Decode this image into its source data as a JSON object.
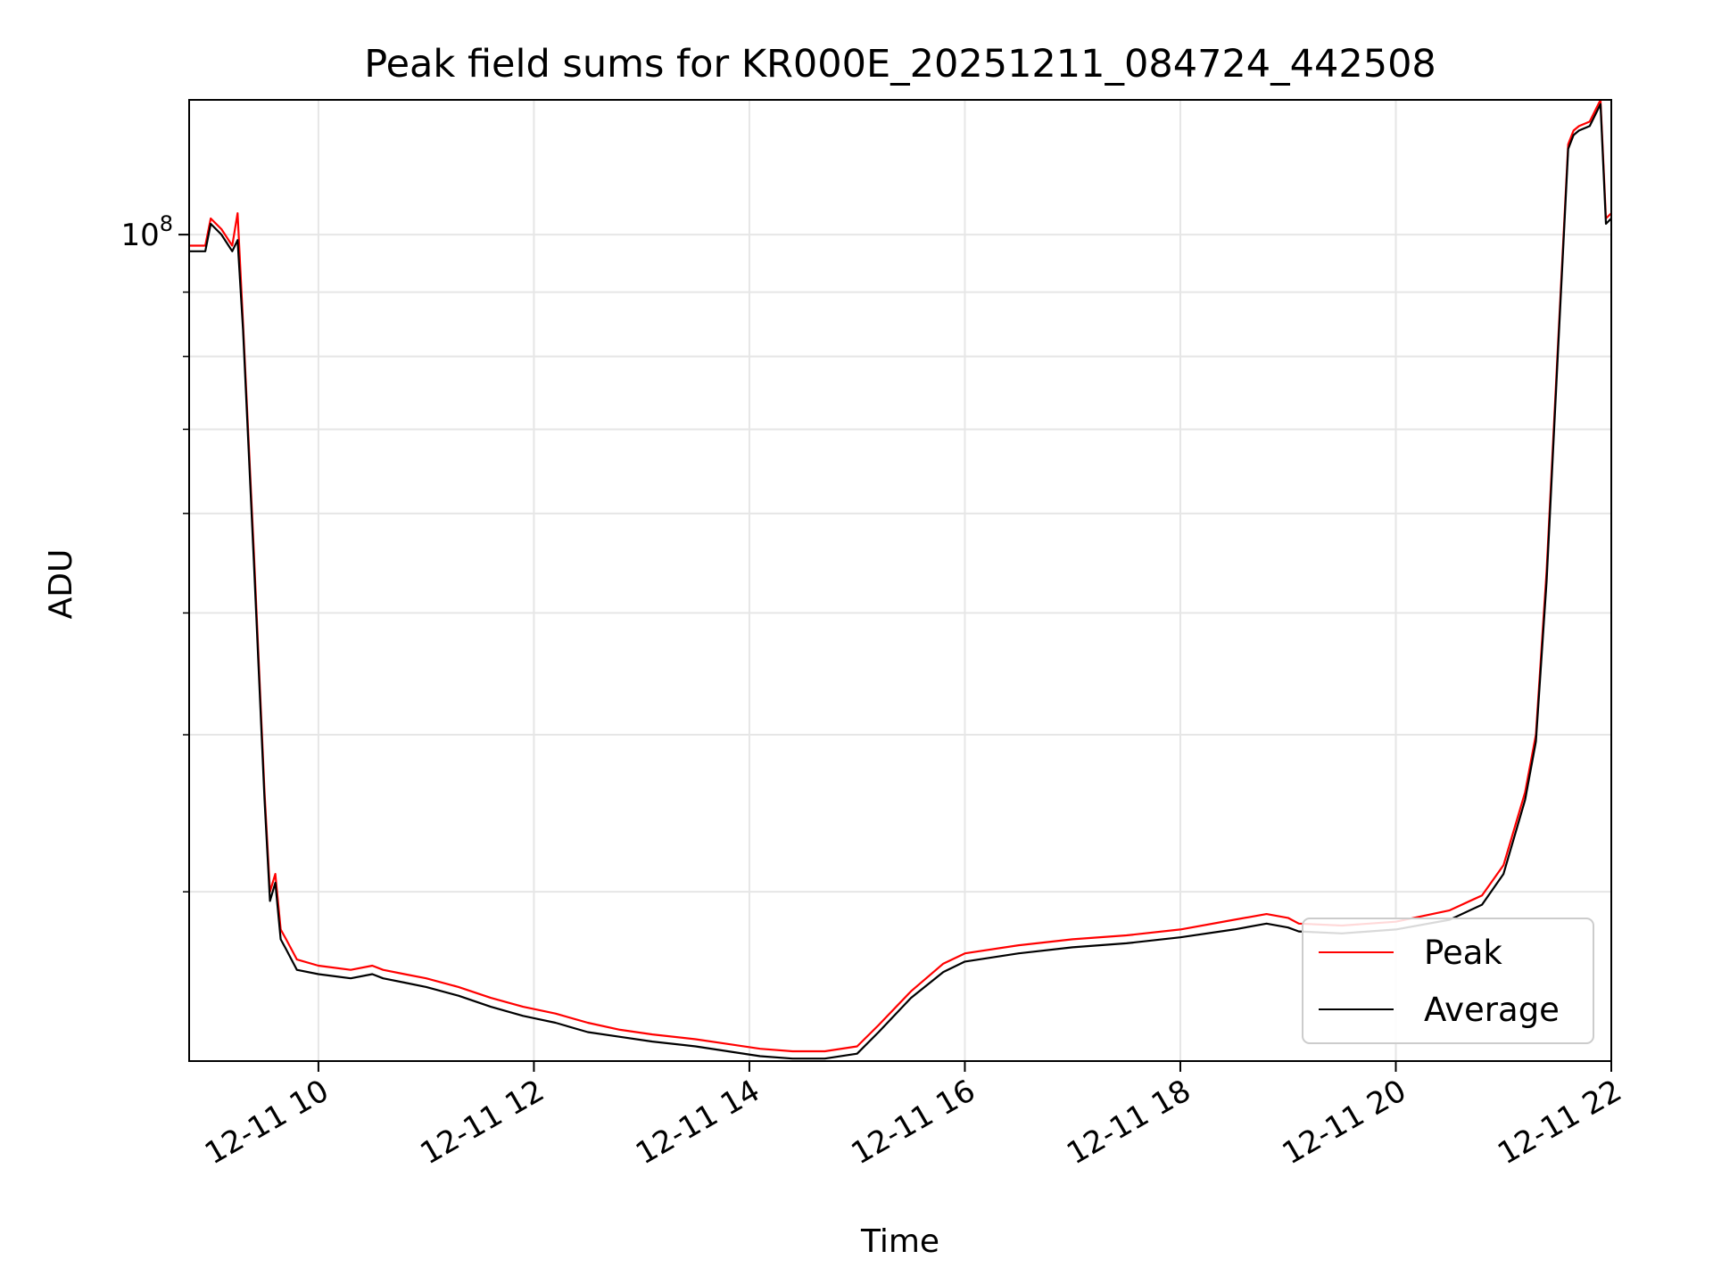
{
  "chart_data": {
    "type": "line",
    "title": "Peak field sums for KR000E_20251211_084724_442508",
    "xlabel": "Time",
    "ylabel": "ADU",
    "yscale": "log",
    "xlim": [
      8.8,
      22.0
    ],
    "ylim": [
      22000000,
      128000000
    ],
    "x_ticks": [
      10,
      12,
      14,
      16,
      18,
      20,
      22
    ],
    "x_tick_labels": [
      "12-11 10",
      "12-11 12",
      "12-11 14",
      "12-11 16",
      "12-11 18",
      "12-11 20",
      "12-11 22"
    ],
    "y_major_ticks": [
      100000000
    ],
    "y_major_tick_label_base": "10",
    "y_major_tick_label_exp": "8",
    "y_minor_ticks": [
      30000000,
      40000000,
      50000000,
      60000000,
      70000000,
      80000000,
      90000000
    ],
    "grid": true,
    "legend_position": "lower-right",
    "colors": {
      "peak": "#ff0000",
      "average": "#000000",
      "grid": "#e6e6e6"
    },
    "series": [
      {
        "name": "Peak",
        "color": "#ff0000",
        "x": [
          8.8,
          8.95,
          9.0,
          9.1,
          9.2,
          9.25,
          9.3,
          9.4,
          9.5,
          9.55,
          9.6,
          9.65,
          9.7,
          9.8,
          10.0,
          10.3,
          10.5,
          10.6,
          10.8,
          11.0,
          11.3,
          11.6,
          11.9,
          12.2,
          12.5,
          12.8,
          13.1,
          13.5,
          13.8,
          14.1,
          14.4,
          14.7,
          15.0,
          15.2,
          15.5,
          15.8,
          16.0,
          16.5,
          17.0,
          17.5,
          18.0,
          18.5,
          18.8,
          19.0,
          19.1,
          19.5,
          20.0,
          20.5,
          20.8,
          21.0,
          21.2,
          21.3,
          21.4,
          21.5,
          21.6,
          21.65,
          21.7,
          21.8,
          21.9,
          21.95,
          22.0
        ],
        "y": [
          98000000,
          98000000,
          103000000,
          101000000,
          98000000,
          104000000,
          85000000,
          56000000,
          36000000,
          30000000,
          31000000,
          28000000,
          27500000,
          26500000,
          26200000,
          26000000,
          26200000,
          26000000,
          25800000,
          25600000,
          25200000,
          24700000,
          24300000,
          24000000,
          23600000,
          23300000,
          23100000,
          22900000,
          22700000,
          22500000,
          22400000,
          22400000,
          22600000,
          23500000,
          25000000,
          26300000,
          26800000,
          27200000,
          27500000,
          27700000,
          28000000,
          28500000,
          28800000,
          28600000,
          28300000,
          28200000,
          28400000,
          29000000,
          29800000,
          31500000,
          36000000,
          40000000,
          54000000,
          80000000,
          118000000,
          121000000,
          122000000,
          123000000,
          128000000,
          103000000,
          104000000
        ]
      },
      {
        "name": "Average",
        "color": "#000000",
        "x": [
          8.8,
          8.95,
          9.0,
          9.1,
          9.2,
          9.25,
          9.3,
          9.4,
          9.5,
          9.55,
          9.6,
          9.65,
          9.7,
          9.8,
          10.0,
          10.3,
          10.5,
          10.6,
          10.8,
          11.0,
          11.3,
          11.6,
          11.9,
          12.2,
          12.5,
          12.8,
          13.1,
          13.5,
          13.8,
          14.1,
          14.4,
          14.7,
          15.0,
          15.2,
          15.5,
          15.8,
          16.0,
          16.5,
          17.0,
          17.5,
          18.0,
          18.5,
          18.8,
          19.0,
          19.1,
          19.5,
          20.0,
          20.5,
          20.8,
          21.0,
          21.2,
          21.3,
          21.4,
          21.5,
          21.6,
          21.65,
          21.7,
          21.8,
          21.9,
          21.95,
          22.0
        ],
        "y": [
          97000000,
          97000000,
          102000000,
          100000000,
          97000000,
          99000000,
          84000000,
          55000000,
          35500000,
          29500000,
          30500000,
          27500000,
          27000000,
          26000000,
          25800000,
          25600000,
          25800000,
          25600000,
          25400000,
          25200000,
          24800000,
          24300000,
          23900000,
          23600000,
          23200000,
          23000000,
          22800000,
          22600000,
          22400000,
          22200000,
          22100000,
          22100000,
          22300000,
          23200000,
          24700000,
          25900000,
          26400000,
          26800000,
          27100000,
          27300000,
          27600000,
          28000000,
          28300000,
          28100000,
          27900000,
          27800000,
          28000000,
          28500000,
          29300000,
          31000000,
          35500000,
          39500000,
          53000000,
          79000000,
          117000000,
          120000000,
          121000000,
          122000000,
          127000000,
          102000000,
          103000000
        ]
      }
    ]
  }
}
